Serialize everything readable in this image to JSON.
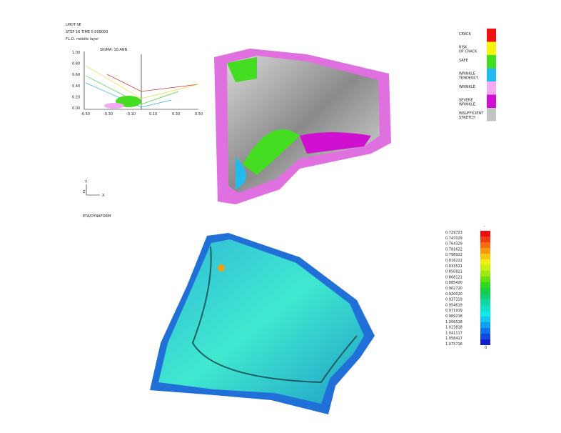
{
  "header": {
    "program": "LMDT-SE",
    "step": "STEP 16   TIME   0.009000",
    "layer": "F.L.D. middle layer"
  },
  "fld": {
    "label": "SIGMA: 10.ANN",
    "yticks": [
      "1.00",
      "0.80",
      "0.60",
      "0.40",
      "0.20",
      "0.00"
    ],
    "xticks": [
      "-0.50",
      "-0.30",
      "-0.10",
      "0.10",
      "0.30",
      "0.50"
    ]
  },
  "triad": {
    "y": "Y",
    "z": "Z",
    "x": "X"
  },
  "footer": "ETA/DYNAFORM",
  "fld_legend": [
    {
      "label": "CRACK",
      "color": "#ee1111"
    },
    {
      "label": "RISK\nOF CRACK",
      "color": "#f4f40c"
    },
    {
      "label": "SAFE",
      "color": "#44dd22"
    },
    {
      "label": "WRINKLE\nTENDENCY",
      "color": "#22bbee"
    },
    {
      "label": "WRINKLE",
      "color": "#f4aaf0"
    },
    {
      "label": "SEVERE\nWRINKLE",
      "color": "#d010d0"
    },
    {
      "label": "INSUFFICIENT\nSTRETCH",
      "color": "#c4c4c4"
    }
  ],
  "scale": {
    "top": "-",
    "bottom": "0",
    "labels": [
      "0.729723",
      "0.747029",
      "0.764329",
      "0.781622",
      "0.798922",
      "0.816222",
      "0.833521",
      "0.850821",
      "0.868121",
      "0.885420",
      "0.902720",
      "0.920020",
      "0.937319",
      "0.954619",
      "0.971919",
      "0.989218",
      "1.006518",
      "1.023818",
      "1.041117",
      "1.058417",
      "1.075716"
    ],
    "colors": [
      "#ee1010",
      "#f23a10",
      "#f66a10",
      "#f89a10",
      "#f8c810",
      "#eef010",
      "#c8f010",
      "#9ae810",
      "#66e010",
      "#30d820",
      "#10d040",
      "#10d070",
      "#10d8a0",
      "#10e0c8",
      "#10e8e8",
      "#10c8f0",
      "#10a0f0",
      "#1070f0",
      "#1048e0",
      "#1020d0"
    ]
  }
}
